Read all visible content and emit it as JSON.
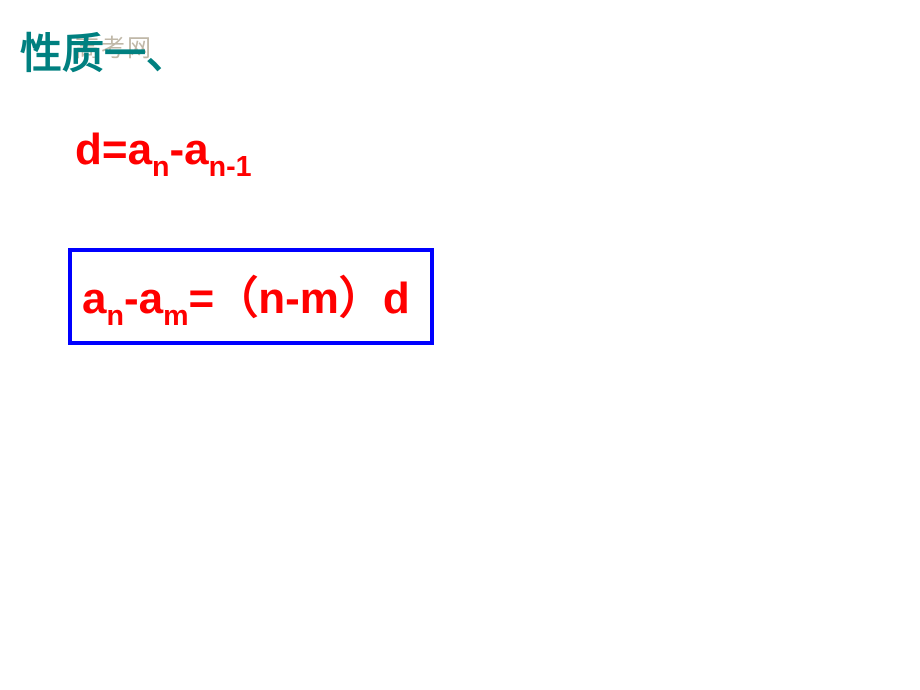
{
  "title": "性质一、",
  "watermark": "高考网",
  "formula1": {
    "prefix": "d=a",
    "sub1": "n",
    "mid": "-a",
    "sub2": "n-1"
  },
  "formula2": {
    "part1": "a",
    "sub1": "n",
    "part2": "-a",
    "sub2": "m",
    "part3": "=（n-m）d"
  },
  "colors": {
    "title_color": "#008080",
    "formula_color": "#ff0000",
    "box_border_color": "#0000ff",
    "watermark_color": "#c0b8a8",
    "background": "#ffffff"
  },
  "box": {
    "border_width": 4
  },
  "typography": {
    "title_fontsize": 42,
    "formula_fontsize": 44,
    "watermark_fontsize": 24
  }
}
